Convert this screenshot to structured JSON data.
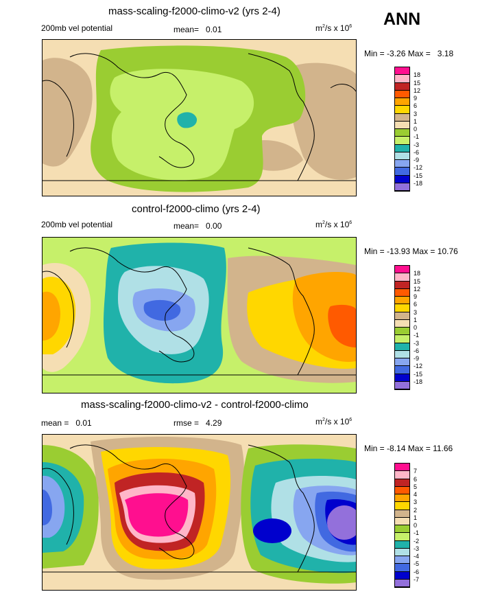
{
  "season": "ANN",
  "panels": [
    {
      "title": "mass-scaling-f2000-climo-v2 (yrs 2-4)",
      "left_label": "200mb vel potential",
      "mean_label": "mean=",
      "mean_value": "0.01",
      "units": "m",
      "units_exp": "2",
      "units_rest": "/s x 10",
      "units_exp2": "6",
      "min_label": "Min =",
      "min_value": "-3.26",
      "max_label": "Max =",
      "max_value": "3.18",
      "levels": [
        "18",
        "15",
        "12",
        "9",
        "6",
        "3",
        "1",
        "0",
        "-1",
        "-3",
        "-6",
        "-9",
        "-12",
        "-15",
        "-18"
      ]
    },
    {
      "title": "control-f2000-climo (yrs 2-4)",
      "left_label": "200mb vel potential",
      "mean_label": "mean=",
      "mean_value": "0.00",
      "units": "m",
      "units_exp": "2",
      "units_rest": "/s x 10",
      "units_exp2": "6",
      "min_label": "Min =",
      "min_value": "-13.93",
      "max_label": "Max =",
      "max_value": "10.76",
      "levels": [
        "18",
        "15",
        "12",
        "9",
        "6",
        "3",
        "1",
        "0",
        "-1",
        "-3",
        "-6",
        "-9",
        "-12",
        "-15",
        "-18"
      ]
    },
    {
      "title": "mass-scaling-f2000-climo-v2 - control-f2000-climo",
      "left_label": "mean =",
      "left_value": "0.01",
      "mean_label": "rmse =",
      "mean_value": "4.29",
      "units": "m",
      "units_exp": "2",
      "units_rest": "/s x 10",
      "units_exp2": "6",
      "min_label": "Min =",
      "min_value": "-8.14",
      "max_label": "Max =",
      "max_value": "11.66",
      "levels": [
        "7",
        "6",
        "5",
        "4",
        "3",
        "2",
        "1",
        "0",
        "-1",
        "-2",
        "-3",
        "-4",
        "-5",
        "-6",
        "-7"
      ]
    }
  ],
  "colors": {
    "palette": [
      "#ff0f8f",
      "#ffb6c8",
      "#c02424",
      "#ff5a00",
      "#ffa500",
      "#ffd700",
      "#d2b48c",
      "#f5deb3",
      "#9acd32",
      "#c6f06a",
      "#20b2aa",
      "#b0e0e6",
      "#87a6f0",
      "#4169e1",
      "#0000cd",
      "#9370db"
    ]
  },
  "chart_data": [
    {
      "type": "heatmap",
      "title": "mass-scaling-f2000-climo-v2 (yrs 2-4)",
      "variable": "200mb vel potential",
      "mean": 0.01,
      "min": -3.26,
      "max": 3.18,
      "contour_levels": [
        -18,
        -15,
        -12,
        -9,
        -6,
        -3,
        -1,
        0,
        1,
        3,
        6,
        9,
        12,
        15,
        18
      ]
    },
    {
      "type": "heatmap",
      "title": "control-f2000-climo (yrs 2-4)",
      "variable": "200mb vel potential",
      "mean": 0.0,
      "min": -13.93,
      "max": 10.76,
      "contour_levels": [
        -18,
        -15,
        -12,
        -9,
        -6,
        -3,
        -1,
        0,
        1,
        3,
        6,
        9,
        12,
        15,
        18
      ]
    },
    {
      "type": "heatmap",
      "title": "mass-scaling-f2000-climo-v2 - control-f2000-climo",
      "mean": 0.01,
      "rmse": 4.29,
      "min": -8.14,
      "max": 11.66,
      "contour_levels": [
        -7,
        -6,
        -5,
        -4,
        -3,
        -2,
        -1,
        0,
        1,
        2,
        3,
        4,
        5,
        6,
        7
      ]
    }
  ]
}
